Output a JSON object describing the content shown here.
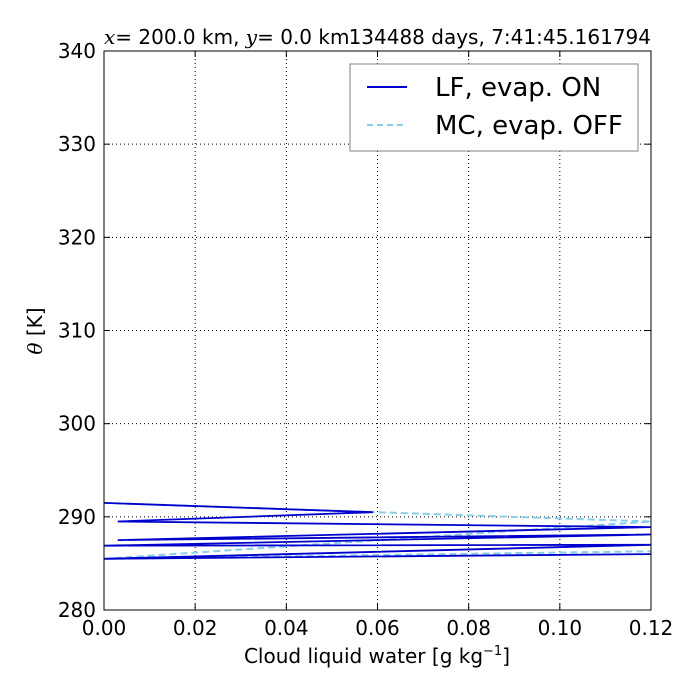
{
  "chart_data": {
    "type": "line",
    "title_left": {
      "x_sym": "x",
      "x_eq": "= 200.0 km, ",
      "y_sym": "y",
      "y_eq": "= 0.0 km"
    },
    "title_right": "134488 days, 7:41:45.161794",
    "xlabel": "Cloud liquid water [g kg",
    "xlabel_sup": "−1",
    "xlabel_tail": "]",
    "ylabel_sym": "θ",
    "ylabel_unit": " [K]",
    "xlim": [
      0.0,
      0.12
    ],
    "ylim": [
      280,
      340
    ],
    "x_ticks": [
      0.0,
      0.02,
      0.04,
      0.06,
      0.08,
      0.1,
      0.12
    ],
    "x_tick_labels": [
      "0.00",
      "0.02",
      "0.04",
      "0.06",
      "0.08",
      "0.10",
      "0.12"
    ],
    "y_ticks": [
      280,
      290,
      300,
      310,
      320,
      330,
      340
    ],
    "y_tick_labels": [
      "280",
      "290",
      "300",
      "310",
      "320",
      "330",
      "340"
    ],
    "grid": true,
    "legend_position": "upper-right",
    "series": [
      {
        "name": "LF, evap. ON",
        "color": "#0000cc",
        "style": "solid",
        "x": [
          0.0,
          0.059,
          0.003,
          0.12,
          0.003,
          0.12,
          0.0,
          0.12,
          0.0,
          0.12
        ],
        "y": [
          291.5,
          290.5,
          289.5,
          288.9,
          287.5,
          288.1,
          286.9,
          287.0,
          285.5,
          286.0
        ]
      },
      {
        "name": "MC, evap. OFF",
        "color": "#87ceeb",
        "style": "dashed",
        "x": [
          0.0,
          0.12,
          0.0,
          0.12
        ],
        "y": [
          291.5,
          289.5,
          285.5,
          286.3
        ]
      }
    ]
  }
}
